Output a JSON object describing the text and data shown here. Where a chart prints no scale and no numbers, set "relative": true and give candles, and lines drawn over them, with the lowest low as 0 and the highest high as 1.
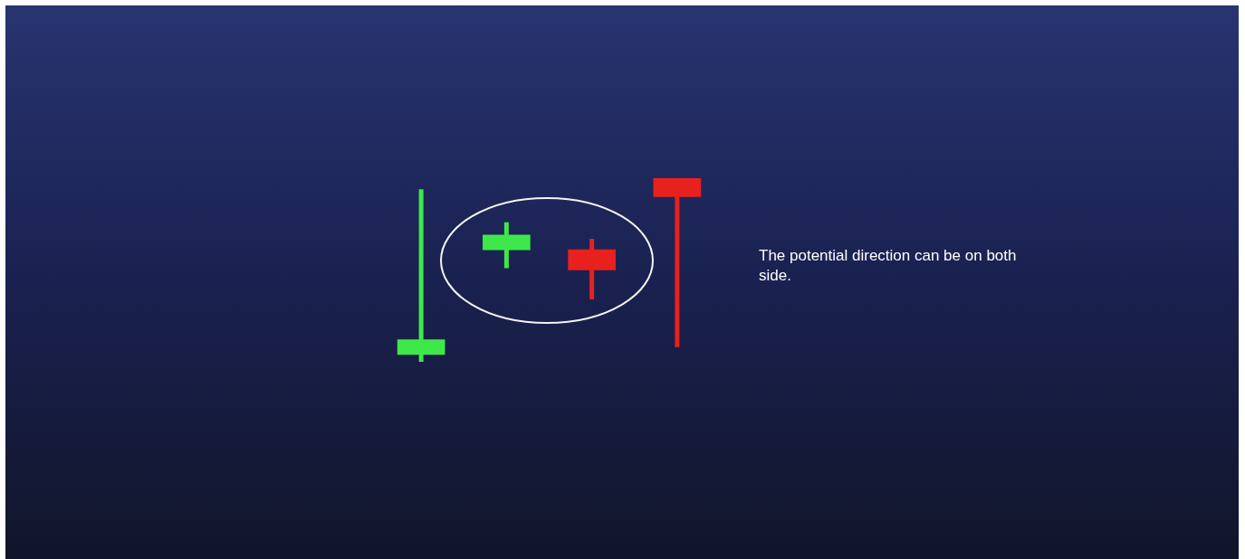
{
  "chart_data": {
    "type": "candlestick",
    "relative": true,
    "categories": [
      null,
      null,
      null,
      null
    ],
    "ohlc": [
      [
        0.04,
        0.94,
        0,
        0.12
      ],
      [
        0.61,
        0.76,
        0.51,
        0.69
      ],
      [
        0.61,
        0.67,
        0.34,
        0.5
      ],
      [
        1,
        1,
        0.08,
        0.9
      ]
    ],
    "colors": [
      "#3ee84a",
      "#3ee84a",
      "#e8201e",
      "#e8201e"
    ],
    "annotations": [
      "The potential direction can be on both side."
    ]
  }
}
